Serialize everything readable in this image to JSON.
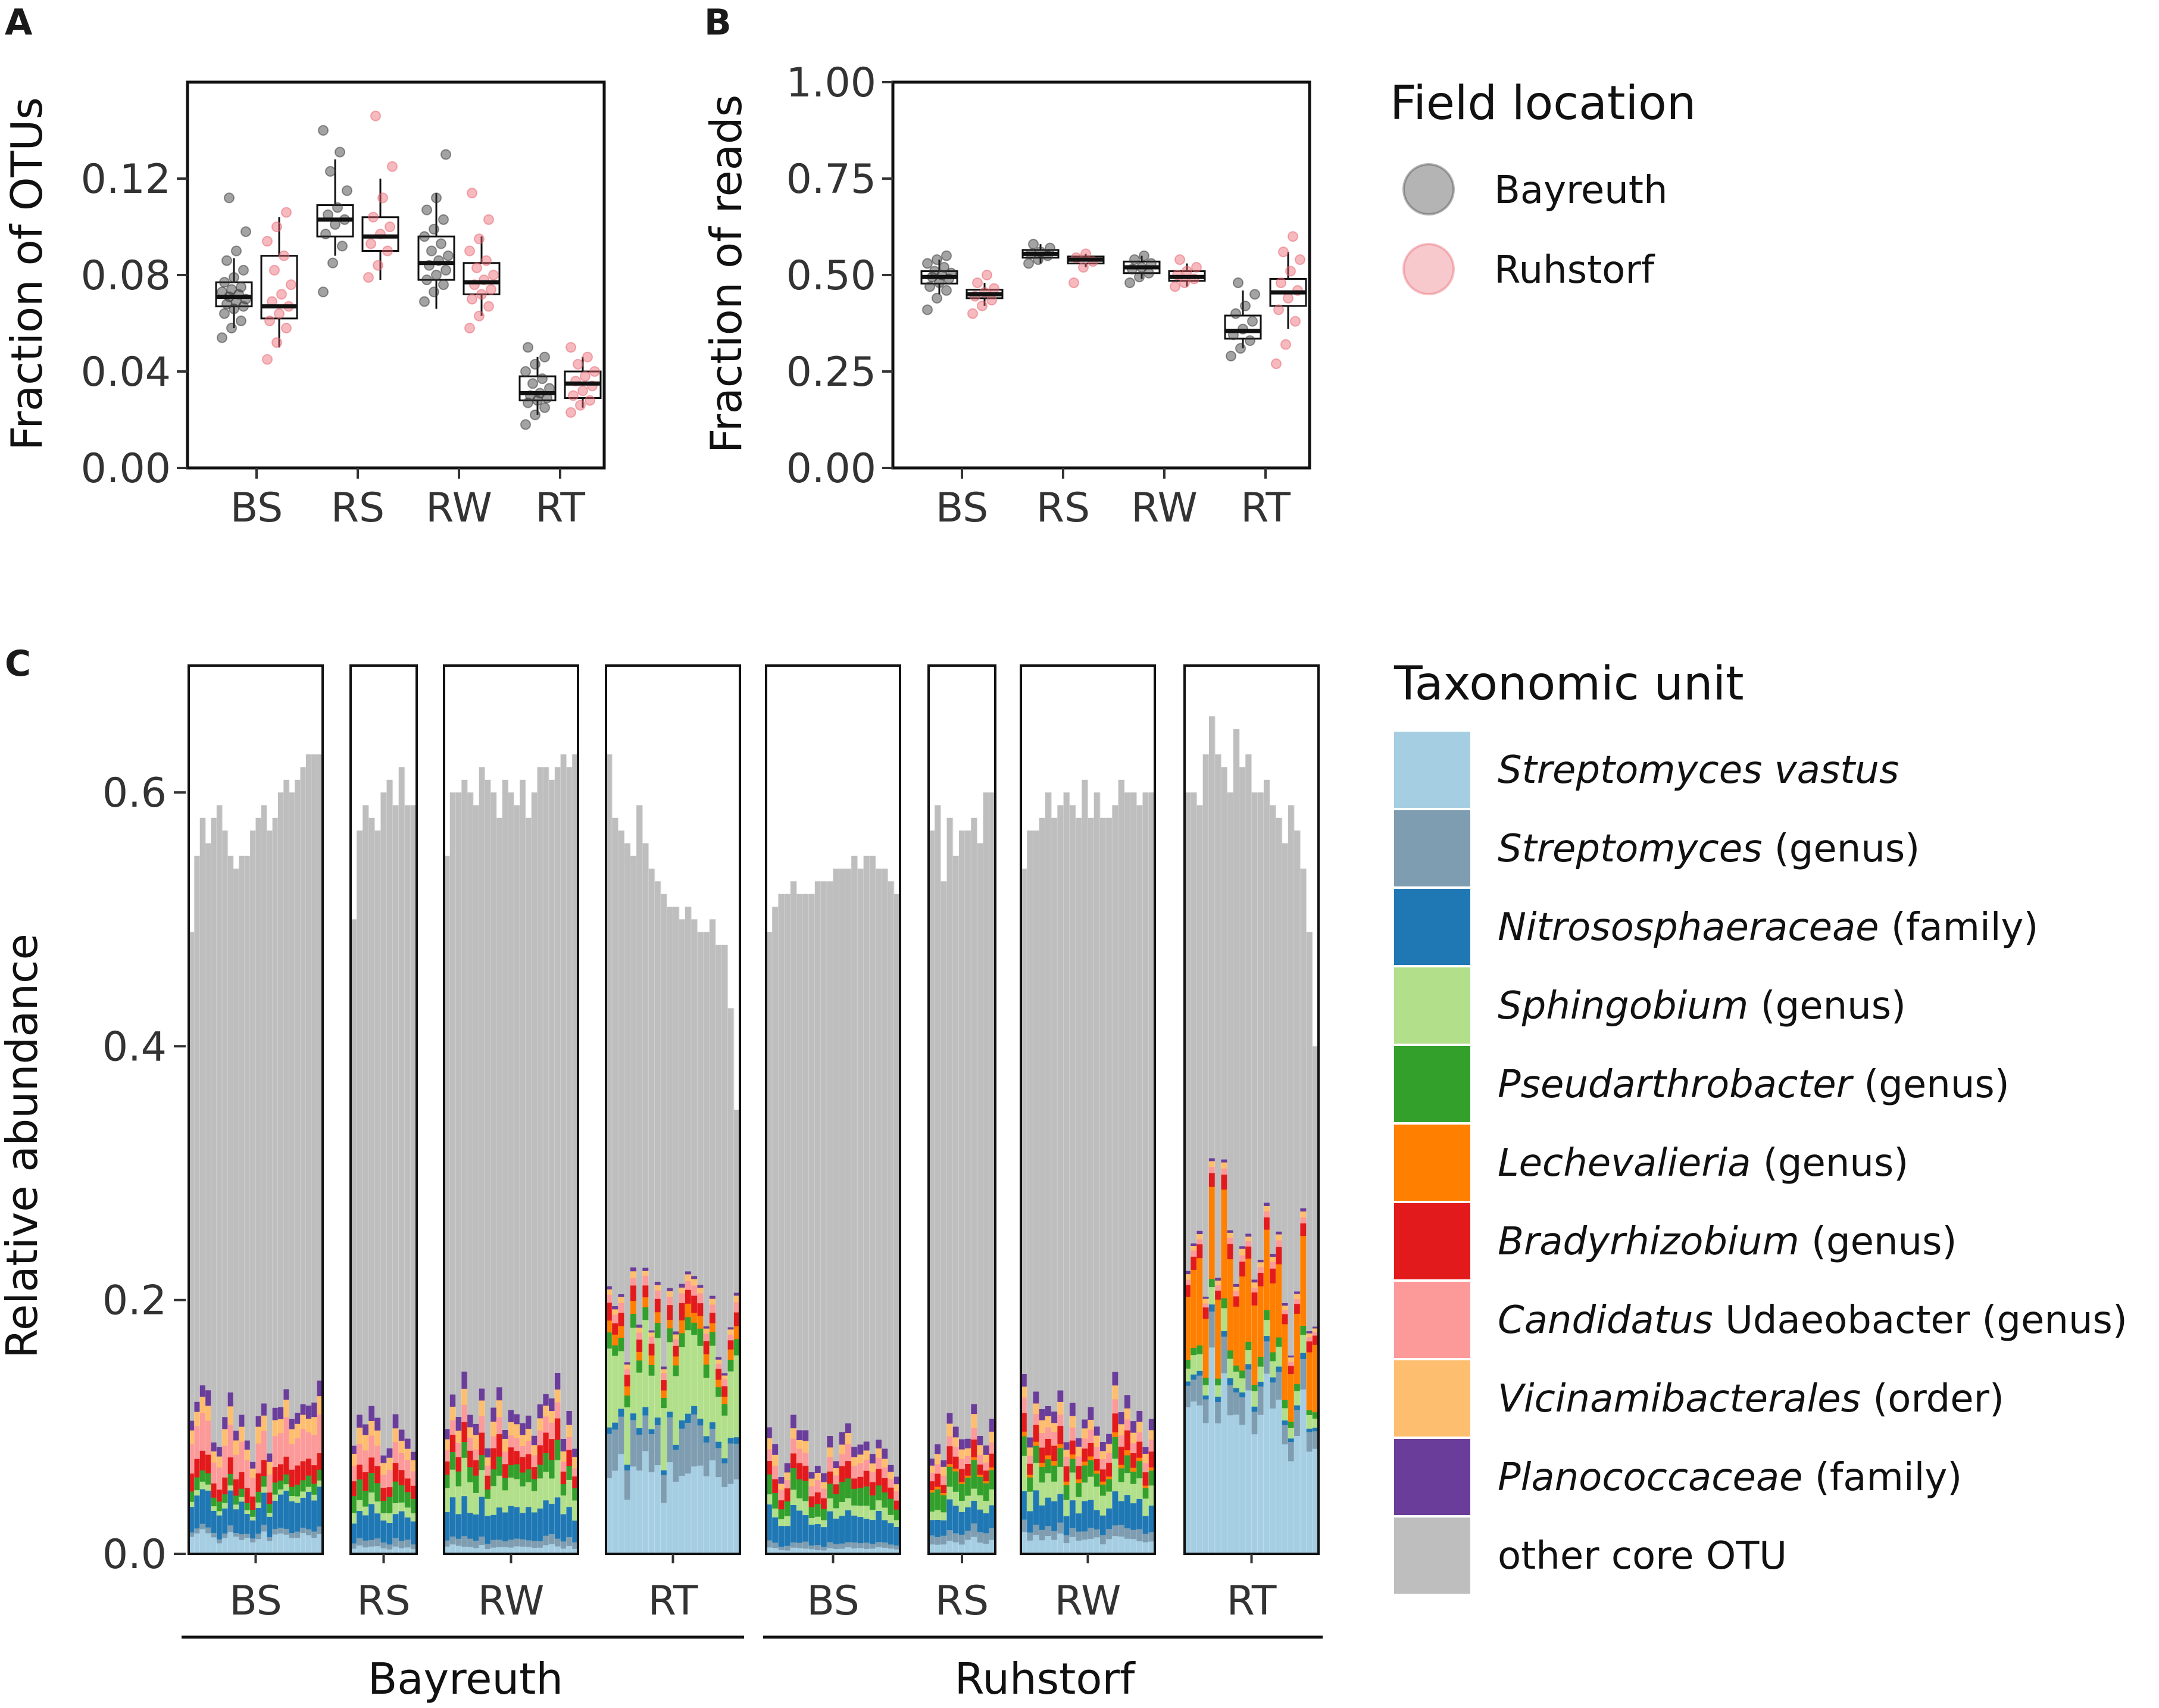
{
  "panels": {
    "a": {
      "letter": "A"
    },
    "b": {
      "letter": "B"
    },
    "c": {
      "letter": "C"
    }
  },
  "legend_field": {
    "title": "Field location",
    "items": [
      {
        "label": "Bayreuth",
        "color": "#444444"
      },
      {
        "label": "Ruhstorf",
        "color": "#e8636f"
      }
    ]
  },
  "legend_taxa": {
    "title": "Taxonomic unit",
    "items": [
      {
        "italic": "Streptomyces vastus",
        "plain": "",
        "color": "#a6cee3"
      },
      {
        "italic": "Streptomyces",
        "plain": " (genus)",
        "color": "#7f9db0"
      },
      {
        "italic": "Nitrososphaeraceae",
        "plain": " (family)",
        "color": "#1f78b4"
      },
      {
        "italic": "Sphingobium",
        "plain": " (genus)",
        "color": "#b2df8a"
      },
      {
        "italic": "Pseudarthrobacter",
        "plain": " (genus)",
        "color": "#33a02c"
      },
      {
        "italic": "Lechevalieria",
        "plain": " (genus)",
        "color": "#ff7f00"
      },
      {
        "italic": "Bradyrhizobium",
        "plain": " (genus)",
        "color": "#e31a1c"
      },
      {
        "italic": "Candidatus",
        "plain": " Udaeobacter (genus)",
        "color": "#fb9a99"
      },
      {
        "italic": "Vicinamibacterales",
        "plain": " (order)",
        "color": "#fdbf6f"
      },
      {
        "italic": "Planococcaceae",
        "plain": " (family)",
        "color": "#6a3d9a"
      },
      {
        "italic": "",
        "plain": "other core OTU",
        "color": "#bebebe"
      }
    ]
  },
  "chart_data": [
    {
      "id": "A",
      "type": "box",
      "ylabel": "Fraction of OTUs",
      "categories": [
        "BS",
        "RS",
        "RW",
        "RT"
      ],
      "yticks": [
        "0.00",
        "0.04",
        "0.08",
        "0.12"
      ],
      "ylim": [
        0,
        0.16
      ],
      "series": [
        {
          "name": "Bayreuth",
          "boxes": [
            {
              "min": 0.058,
              "q1": 0.067,
              "median": 0.071,
              "q3": 0.077,
              "max": 0.087,
              "points": [
                0.054,
                0.058,
                0.061,
                0.064,
                0.066,
                0.067,
                0.068,
                0.069,
                0.07,
                0.071,
                0.072,
                0.073,
                0.074,
                0.075,
                0.077,
                0.079,
                0.082,
                0.086,
                0.09,
                0.098,
                0.112
              ]
            },
            {
              "min": 0.088,
              "q1": 0.096,
              "median": 0.103,
              "q3": 0.109,
              "max": 0.128,
              "points": [
                0.073,
                0.085,
                0.092,
                0.097,
                0.101,
                0.103,
                0.105,
                0.108,
                0.115,
                0.123,
                0.131,
                0.14
              ]
            },
            {
              "min": 0.066,
              "q1": 0.078,
              "median": 0.085,
              "q3": 0.096,
              "max": 0.114,
              "points": [
                0.069,
                0.073,
                0.076,
                0.078,
                0.08,
                0.082,
                0.084,
                0.086,
                0.088,
                0.09,
                0.093,
                0.096,
                0.099,
                0.103,
                0.107,
                0.112,
                0.13
              ]
            },
            {
              "min": 0.022,
              "q1": 0.028,
              "median": 0.031,
              "q3": 0.038,
              "max": 0.046,
              "points": [
                0.018,
                0.022,
                0.025,
                0.027,
                0.028,
                0.029,
                0.03,
                0.031,
                0.033,
                0.035,
                0.037,
                0.04,
                0.043,
                0.046,
                0.05
              ]
            }
          ]
        },
        {
          "name": "Ruhstorf",
          "boxes": [
            {
              "min": 0.05,
              "q1": 0.062,
              "median": 0.067,
              "q3": 0.088,
              "max": 0.104,
              "points": [
                0.045,
                0.052,
                0.058,
                0.061,
                0.064,
                0.067,
                0.069,
                0.072,
                0.076,
                0.082,
                0.088,
                0.094,
                0.1,
                0.106
              ]
            },
            {
              "min": 0.078,
              "q1": 0.09,
              "median": 0.096,
              "q3": 0.104,
              "max": 0.12,
              "points": [
                0.079,
                0.084,
                0.09,
                0.093,
                0.097,
                0.1,
                0.104,
                0.112,
                0.125,
                0.146
              ]
            },
            {
              "min": 0.063,
              "q1": 0.072,
              "median": 0.077,
              "q3": 0.085,
              "max": 0.096,
              "points": [
                0.058,
                0.063,
                0.067,
                0.07,
                0.072,
                0.074,
                0.076,
                0.078,
                0.08,
                0.083,
                0.086,
                0.09,
                0.095,
                0.103,
                0.114
              ]
            },
            {
              "min": 0.025,
              "q1": 0.029,
              "median": 0.035,
              "q3": 0.04,
              "max": 0.046,
              "points": [
                0.023,
                0.026,
                0.028,
                0.03,
                0.032,
                0.034,
                0.036,
                0.038,
                0.04,
                0.043,
                0.046,
                0.05
              ]
            }
          ]
        }
      ]
    },
    {
      "id": "B",
      "type": "box",
      "ylabel": "Fraction of reads",
      "categories": [
        "BS",
        "RS",
        "RW",
        "RT"
      ],
      "yticks": [
        "0.00",
        "0.25",
        "0.50",
        "0.75",
        "1.00"
      ],
      "ylim": [
        0,
        1
      ],
      "series": [
        {
          "name": "Bayreuth",
          "boxes": [
            {
              "min": 0.45,
              "q1": 0.478,
              "median": 0.495,
              "q3": 0.51,
              "max": 0.54,
              "points": [
                0.41,
                0.44,
                0.46,
                0.47,
                0.48,
                0.49,
                0.495,
                0.5,
                0.505,
                0.51,
                0.52,
                0.53,
                0.54,
                0.55
              ]
            },
            {
              "min": 0.53,
              "q1": 0.545,
              "median": 0.555,
              "q3": 0.565,
              "max": 0.58,
              "points": [
                0.53,
                0.54,
                0.55,
                0.555,
                0.56,
                0.57,
                0.58
              ]
            },
            {
              "min": 0.49,
              "q1": 0.505,
              "median": 0.52,
              "q3": 0.535,
              "max": 0.55,
              "points": [
                0.48,
                0.495,
                0.505,
                0.515,
                0.52,
                0.53,
                0.54,
                0.55
              ]
            },
            {
              "min": 0.31,
              "q1": 0.335,
              "median": 0.355,
              "q3": 0.395,
              "max": 0.46,
              "points": [
                0.29,
                0.31,
                0.33,
                0.345,
                0.36,
                0.38,
                0.4,
                0.42,
                0.45,
                0.48
              ]
            }
          ]
        },
        {
          "name": "Ruhstorf",
          "boxes": [
            {
              "min": 0.42,
              "q1": 0.44,
              "median": 0.45,
              "q3": 0.462,
              "max": 0.48,
              "points": [
                0.4,
                0.42,
                0.435,
                0.445,
                0.455,
                0.465,
                0.48,
                0.5
              ]
            },
            {
              "min": 0.52,
              "q1": 0.53,
              "median": 0.54,
              "q3": 0.548,
              "max": 0.555,
              "points": [
                0.48,
                0.52,
                0.535,
                0.545,
                0.555
              ]
            },
            {
              "min": 0.47,
              "q1": 0.485,
              "median": 0.495,
              "q3": 0.51,
              "max": 0.53,
              "points": [
                0.47,
                0.48,
                0.49,
                0.5,
                0.51,
                0.52,
                0.54
              ]
            },
            {
              "min": 0.36,
              "q1": 0.42,
              "median": 0.455,
              "q3": 0.49,
              "max": 0.56,
              "points": [
                0.27,
                0.32,
                0.38,
                0.41,
                0.44,
                0.46,
                0.48,
                0.51,
                0.54,
                0.56,
                0.6
              ]
            }
          ]
        }
      ]
    },
    {
      "id": "C",
      "type": "stacked-bar",
      "ylabel": "Relative abundance",
      "yticks": [
        "0.0",
        "0.2",
        "0.4",
        "0.6"
      ],
      "ylim": [
        0,
        0.7
      ],
      "group_labels": [
        "Bayreuth",
        "Ruhstorf"
      ],
      "facets": [
        {
          "label": "BS",
          "group": "Bayreuth",
          "n": 24,
          "total": [
            0.49,
            0.55,
            0.58,
            0.56,
            0.58,
            0.59,
            0.57,
            0.55,
            0.54,
            0.55,
            0.55,
            0.57,
            0.58,
            0.59,
            0.57,
            0.58,
            0.6,
            0.61,
            0.6,
            0.61,
            0.62,
            0.63,
            0.63,
            0.63
          ],
          "taxa": [
            0.013,
            0.004,
            0.022,
            0.004,
            0.008,
            0,
            0.012,
            0.022,
            0.011,
            0.008
          ]
        },
        {
          "label": "RS",
          "group": "Bayreuth",
          "n": 11,
          "total": [
            0.5,
            0.57,
            0.59,
            0.58,
            0.57,
            0.6,
            0.61,
            0.59,
            0.62,
            0.59,
            0.59
          ],
          "taxa": [
            0.005,
            0.005,
            0.02,
            0.008,
            0.014,
            0,
            0.012,
            0.015,
            0.01,
            0.008
          ]
        },
        {
          "label": "RW",
          "group": "Bayreuth",
          "n": 23,
          "total": [
            0.55,
            0.6,
            0.6,
            0.61,
            0.6,
            0.59,
            0.62,
            0.61,
            0.6,
            0.58,
            0.61,
            0.6,
            0.59,
            0.61,
            0.58,
            0.6,
            0.62,
            0.62,
            0.61,
            0.62,
            0.63,
            0.62,
            0.63
          ],
          "taxa": [
            0.006,
            0.006,
            0.024,
            0.022,
            0.012,
            0,
            0.014,
            0.01,
            0.01,
            0.01
          ]
        },
        {
          "label": "RT",
          "group": "Bayreuth",
          "n": 22,
          "total": [
            0.63,
            0.58,
            0.57,
            0.56,
            0.55,
            0.59,
            0.56,
            0.54,
            0.53,
            0.52,
            0.51,
            0.51,
            0.5,
            0.51,
            0.5,
            0.49,
            0.49,
            0.5,
            0.48,
            0.48,
            0.43,
            0.35
          ],
          "taxa": [
            0.06,
            0.03,
            0.005,
            0.05,
            0.01,
            0.008,
            0.01,
            0.006,
            0.004,
            0.002
          ]
        },
        {
          "label": "BS",
          "group": "Ruhstorf",
          "n": 22,
          "total": [
            0.49,
            0.51,
            0.52,
            0.52,
            0.53,
            0.52,
            0.52,
            0.52,
            0.53,
            0.53,
            0.53,
            0.54,
            0.54,
            0.54,
            0.55,
            0.54,
            0.55,
            0.55,
            0.54,
            0.54,
            0.53,
            0.52
          ],
          "taxa": [
            0.004,
            0.004,
            0.02,
            0.008,
            0.012,
            0,
            0.01,
            0.009,
            0.007,
            0.007
          ]
        },
        {
          "label": "RS",
          "group": "Ruhstorf",
          "n": 11,
          "total": [
            0.57,
            0.59,
            0.53,
            0.58,
            0.55,
            0.57,
            0.57,
            0.58,
            0.56,
            0.6,
            0.6
          ],
          "taxa": [
            0.01,
            0.008,
            0.018,
            0.01,
            0.016,
            0.002,
            0.01,
            0.008,
            0.008,
            0.008
          ]
        },
        {
          "label": "RW",
          "group": "Ruhstorf",
          "n": 22,
          "total": [
            0.54,
            0.57,
            0.57,
            0.58,
            0.6,
            0.58,
            0.59,
            0.6,
            0.59,
            0.58,
            0.61,
            0.58,
            0.6,
            0.58,
            0.58,
            0.59,
            0.61,
            0.6,
            0.6,
            0.59,
            0.6,
            0.6
          ],
          "taxa": [
            0.012,
            0.008,
            0.02,
            0.018,
            0.012,
            0.003,
            0.012,
            0.009,
            0.008,
            0.008
          ]
        },
        {
          "label": "RT",
          "group": "Ruhstorf",
          "n": 22,
          "total": [
            0.6,
            0.6,
            0.59,
            0.63,
            0.66,
            0.63,
            0.62,
            0.6,
            0.65,
            0.62,
            0.63,
            0.6,
            0.6,
            0.61,
            0.59,
            0.58,
            0.56,
            0.59,
            0.57,
            0.54,
            0.49,
            0.4
          ],
          "taxa": [
            0.11,
            0.02,
            0.004,
            0.012,
            0.006,
            0.06,
            0.01,
            0.004,
            0.004,
            0.002
          ]
        }
      ]
    }
  ]
}
